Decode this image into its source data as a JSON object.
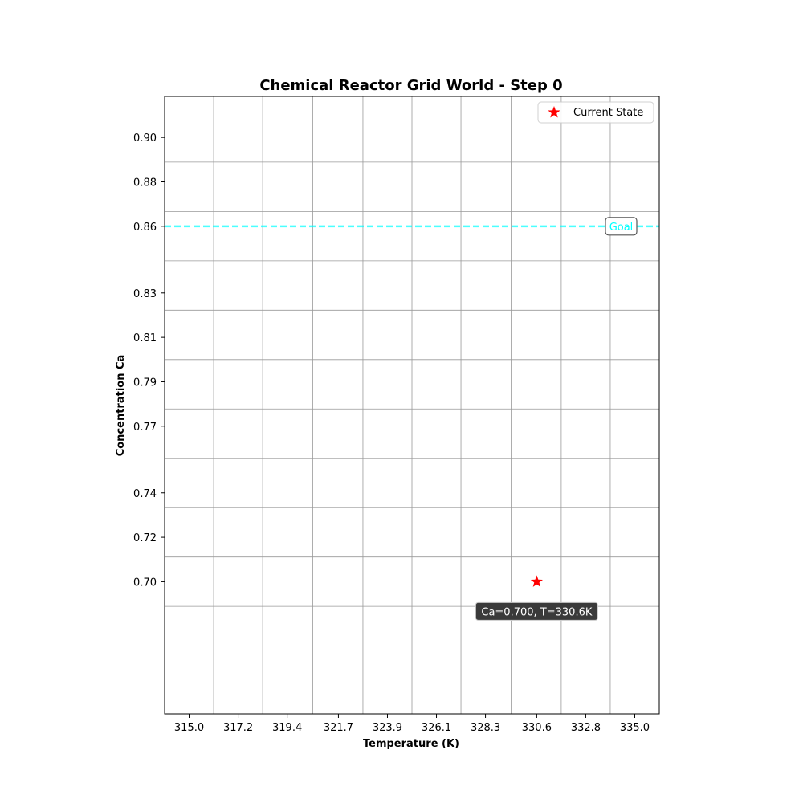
{
  "chart_data": {
    "type": "scatter",
    "title": "Chemical Reactor Grid World - Step 0",
    "xlabel": "Temperature (K)",
    "ylabel": "Concentration Ca",
    "x_ticks": [
      315.0,
      317.2,
      319.4,
      321.7,
      323.9,
      326.1,
      328.3,
      330.6,
      332.8,
      335.0
    ],
    "x_tick_labels": [
      "315.0",
      "317.2",
      "319.4",
      "321.7",
      "323.9",
      "326.1",
      "328.3",
      "330.6",
      "332.8",
      "335.0"
    ],
    "y_ticks": [
      0.7,
      0.72,
      0.74,
      0.77,
      0.79,
      0.81,
      0.83,
      0.86,
      0.88,
      0.9
    ],
    "y_tick_labels": [
      "0.70",
      "0.72",
      "0.74",
      "0.77",
      "0.79",
      "0.81",
      "0.83",
      "0.86",
      "0.88",
      "0.90"
    ],
    "xlim": [
      313.9,
      336.1
    ],
    "ylim": [
      0.6405,
      0.9185
    ],
    "grid": true,
    "legend_position": "top-right",
    "series": [
      {
        "name": "Current State",
        "marker": "star",
        "color": "#ff0000",
        "points": [
          {
            "x": 330.6,
            "y": 0.7
          }
        ]
      }
    ],
    "goal": {
      "y": 0.86,
      "label": "Goal",
      "color": "#00ffff",
      "style": "dashed"
    },
    "annotation": {
      "text": "Ca=0.700, T=330.6K",
      "x": 330.6,
      "y": 0.7
    }
  }
}
